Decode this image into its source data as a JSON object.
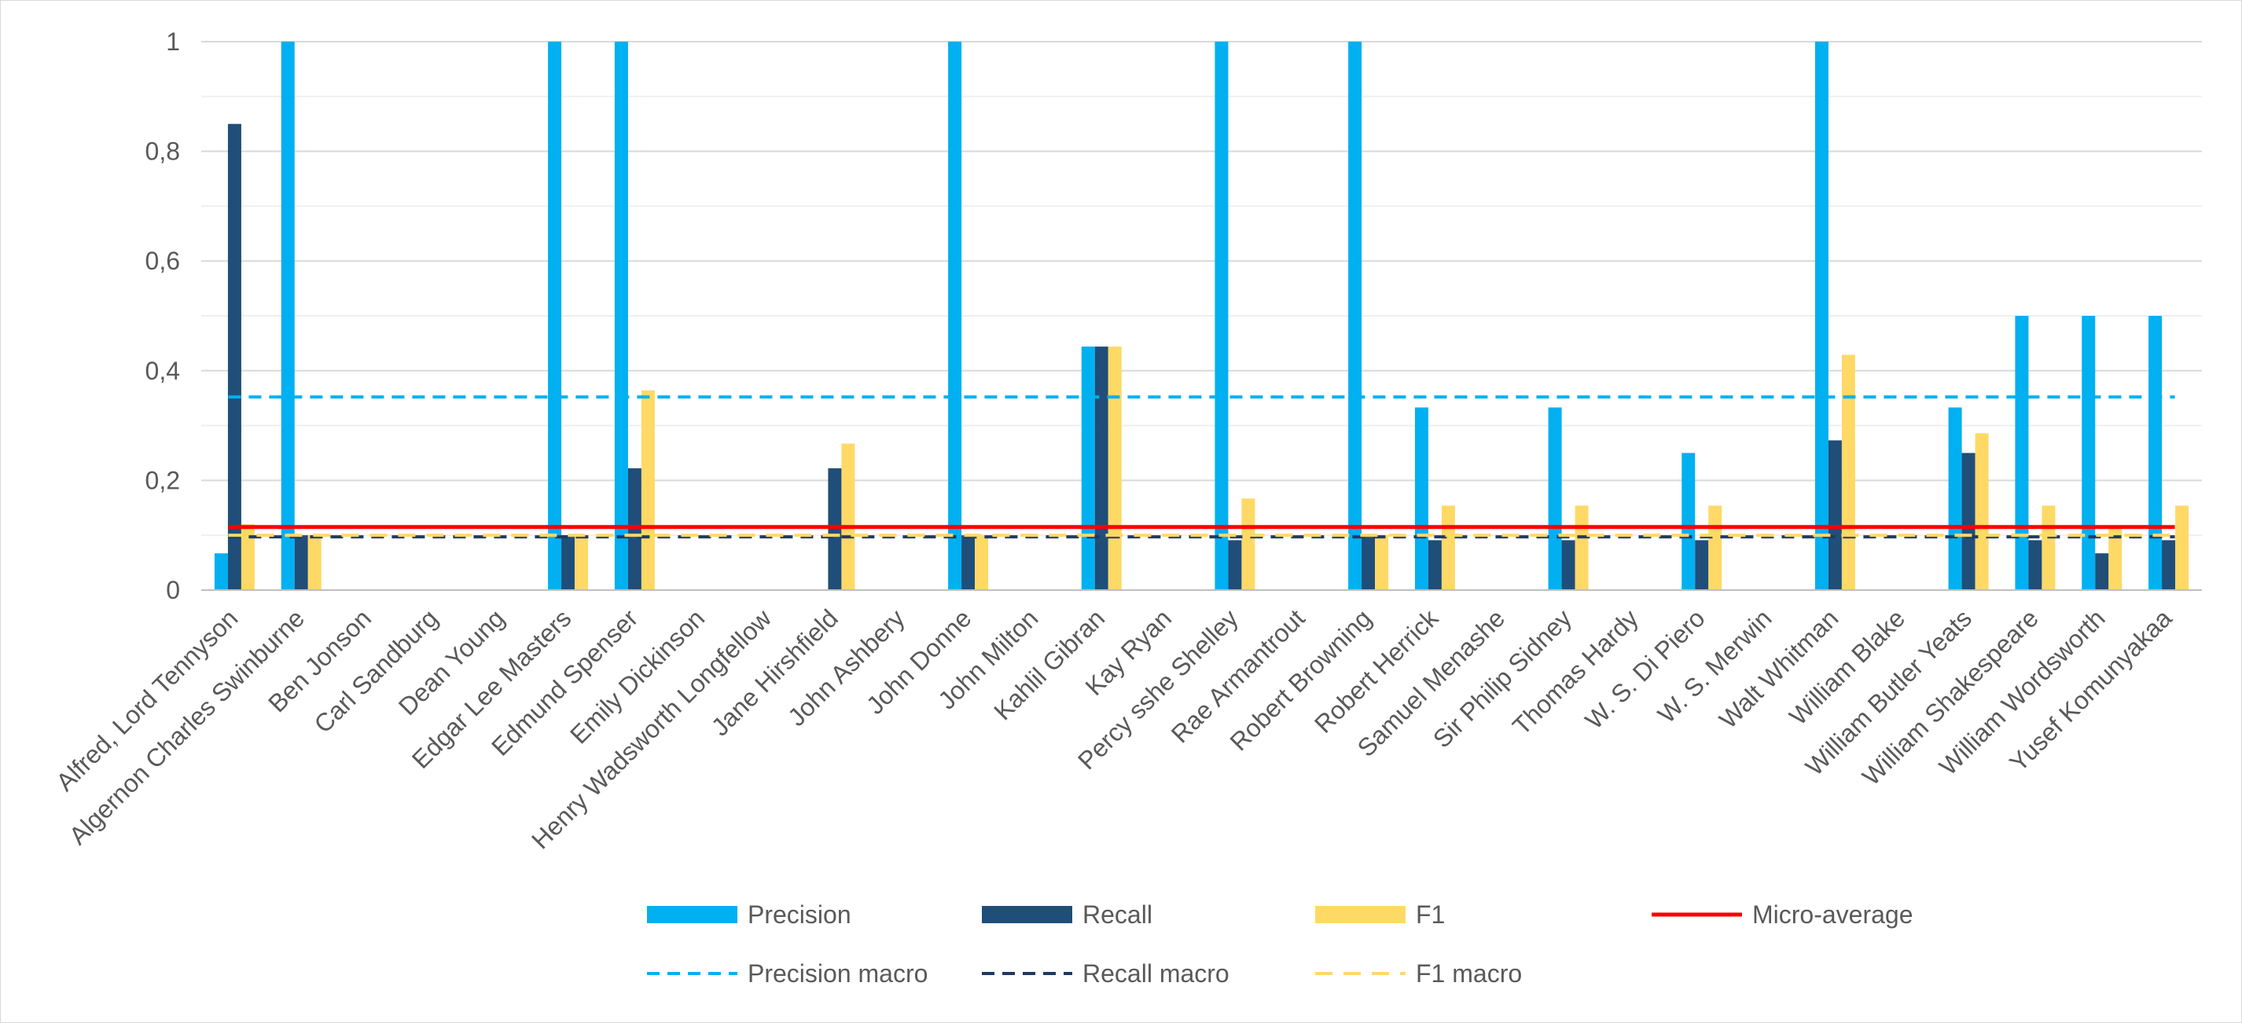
{
  "chart_data": {
    "type": "bar",
    "title": "",
    "xlabel": "",
    "ylabel": "",
    "ylim": [
      0,
      1
    ],
    "yticks": [
      0,
      0.2,
      0.4,
      0.6,
      0.8,
      1
    ],
    "ytick_labels": [
      "0",
      "0,2",
      "0,4",
      "0,6",
      "0,8",
      "1"
    ],
    "grid": true,
    "legend_position": "bottom",
    "categories": [
      "Alfred, Lord Tennyson",
      "Algernon Charles Swinburne",
      "Ben Jonson",
      "Carl Sandburg",
      "Dean Young",
      "Edgar Lee Masters",
      "Edmund Spenser",
      "Emily Dickinson",
      "Henry Wadsworth Longfellow",
      "Jane Hirshfield",
      "John Ashbery",
      "John Donne",
      "John Milton",
      "Kahlil Gibran",
      "Kay Ryan",
      "Percy sshe Shelley",
      "Rae Armantrout",
      "Robert Browning",
      "Robert Herrick",
      "Samuel Menashe",
      "Sir Philip Sidney",
      "Thomas Hardy",
      "W. S. Di Piero",
      "W. S. Merwin",
      "Walt Whitman",
      "William Blake",
      "William Butler Yeats",
      "William Shakespeare",
      "William Wordsworth",
      "Yusef Komunyakaa"
    ],
    "series": [
      {
        "name": "Precision",
        "kind": "bar",
        "color": "#00B0F0",
        "values": [
          0.067,
          1,
          0,
          0,
          0,
          1,
          1,
          0,
          0,
          0,
          0,
          1,
          0,
          0.444,
          0,
          1,
          0,
          1,
          0.333,
          0,
          0.333,
          0,
          0.25,
          0,
          1,
          0,
          0.333,
          0.5,
          0.5,
          0.5
        ]
      },
      {
        "name": "Recall",
        "kind": "bar",
        "color": "#1F4E79",
        "values": [
          0.85,
          0.1,
          0,
          0,
          0,
          0.1,
          0.222,
          0,
          0,
          0.222,
          0,
          0.1,
          0,
          0.444,
          0,
          0.091,
          0,
          0.1,
          0.091,
          0,
          0.091,
          0,
          0.091,
          0,
          0.273,
          0,
          0.25,
          0.091,
          0.067,
          0.091
        ]
      },
      {
        "name": "F1",
        "kind": "bar",
        "color": "#FFD966",
        "values": [
          0.12,
          0.1,
          0,
          0,
          0,
          0.1,
          0.364,
          0,
          0,
          0.267,
          0,
          0.1,
          0,
          0.444,
          0,
          0.167,
          0,
          0.1,
          0.154,
          0,
          0.154,
          0,
          0.154,
          0,
          0.429,
          0,
          0.286,
          0.154,
          0.115,
          0.154
        ]
      },
      {
        "name": "Micro-average",
        "kind": "line",
        "style": "solid",
        "color": "#FF0000",
        "value": 0.115
      },
      {
        "name": "Precision macro",
        "kind": "line",
        "style": "dashed",
        "color": "#00B0F0",
        "value": 0.352
      },
      {
        "name": "Recall macro",
        "kind": "line",
        "style": "dashed",
        "color": "#1F3864",
        "value": 0.097
      },
      {
        "name": "F1 macro",
        "kind": "line",
        "style": "dashed",
        "color": "#FFD966",
        "value": 0.1
      }
    ]
  }
}
